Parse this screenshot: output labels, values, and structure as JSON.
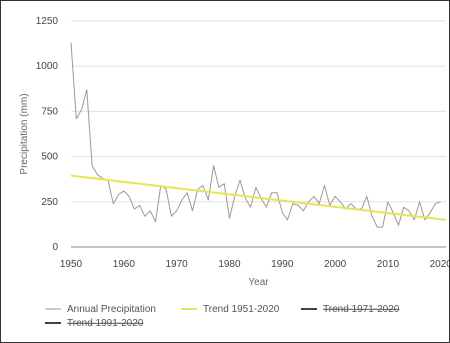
{
  "chart_data": {
    "type": "line",
    "title": "",
    "xlabel": "Year",
    "ylabel": "Precipitation (mm)",
    "xlim": [
      1950,
      2021
    ],
    "ylim": [
      0,
      1250
    ],
    "x_ticks": [
      1950,
      1960,
      1970,
      1980,
      1990,
      2000,
      2010,
      2020
    ],
    "y_ticks": [
      0,
      250,
      500,
      750,
      1000,
      1250
    ],
    "grid": "horizontal",
    "legend_position": "bottom",
    "series": [
      {
        "name": "Annual Precipitation",
        "color": "#9a9a9a",
        "style": "line",
        "points": [
          [
            1950,
            1130
          ],
          [
            1951,
            710
          ],
          [
            1952,
            760
          ],
          [
            1953,
            870
          ],
          [
            1954,
            450
          ],
          [
            1955,
            400
          ],
          [
            1956,
            380
          ],
          [
            1957,
            370
          ],
          [
            1958,
            240
          ],
          [
            1959,
            290
          ],
          [
            1960,
            310
          ],
          [
            1961,
            280
          ],
          [
            1962,
            210
          ],
          [
            1963,
            230
          ],
          [
            1964,
            170
          ],
          [
            1965,
            200
          ],
          [
            1966,
            140
          ],
          [
            1967,
            340
          ],
          [
            1968,
            320
          ],
          [
            1969,
            170
          ],
          [
            1970,
            200
          ],
          [
            1971,
            260
          ],
          [
            1972,
            300
          ],
          [
            1973,
            200
          ],
          [
            1974,
            320
          ],
          [
            1975,
            340
          ],
          [
            1976,
            260
          ],
          [
            1977,
            450
          ],
          [
            1978,
            330
          ],
          [
            1979,
            350
          ],
          [
            1980,
            160
          ],
          [
            1981,
            280
          ],
          [
            1982,
            370
          ],
          [
            1983,
            270
          ],
          [
            1984,
            220
          ],
          [
            1985,
            330
          ],
          [
            1986,
            270
          ],
          [
            1987,
            220
          ],
          [
            1988,
            300
          ],
          [
            1989,
            300
          ],
          [
            1990,
            190
          ],
          [
            1991,
            150
          ],
          [
            1992,
            240
          ],
          [
            1993,
            230
          ],
          [
            1994,
            200
          ],
          [
            1995,
            250
          ],
          [
            1996,
            280
          ],
          [
            1997,
            240
          ],
          [
            1998,
            340
          ],
          [
            1999,
            230
          ],
          [
            2000,
            280
          ],
          [
            2001,
            250
          ],
          [
            2002,
            210
          ],
          [
            2003,
            240
          ],
          [
            2004,
            210
          ],
          [
            2005,
            210
          ],
          [
            2006,
            280
          ],
          [
            2007,
            170
          ],
          [
            2008,
            110
          ],
          [
            2009,
            110
          ],
          [
            2010,
            250
          ],
          [
            2011,
            190
          ],
          [
            2012,
            120
          ],
          [
            2013,
            220
          ],
          [
            2014,
            200
          ],
          [
            2015,
            150
          ],
          [
            2016,
            250
          ],
          [
            2017,
            150
          ],
          [
            2018,
            190
          ],
          [
            2019,
            240
          ],
          [
            2020,
            250
          ]
        ]
      },
      {
        "name": "Trend 1951-2020",
        "color": "#e4e655",
        "style": "line",
        "points": [
          [
            1950,
            395
          ],
          [
            2021,
            150
          ]
        ]
      },
      {
        "name": "Trend 1971-2020",
        "color": "#444444",
        "style": "legend-only",
        "points": []
      },
      {
        "name": "Trend 1991-2020",
        "color": "#444444",
        "style": "legend-only",
        "points": []
      }
    ]
  }
}
